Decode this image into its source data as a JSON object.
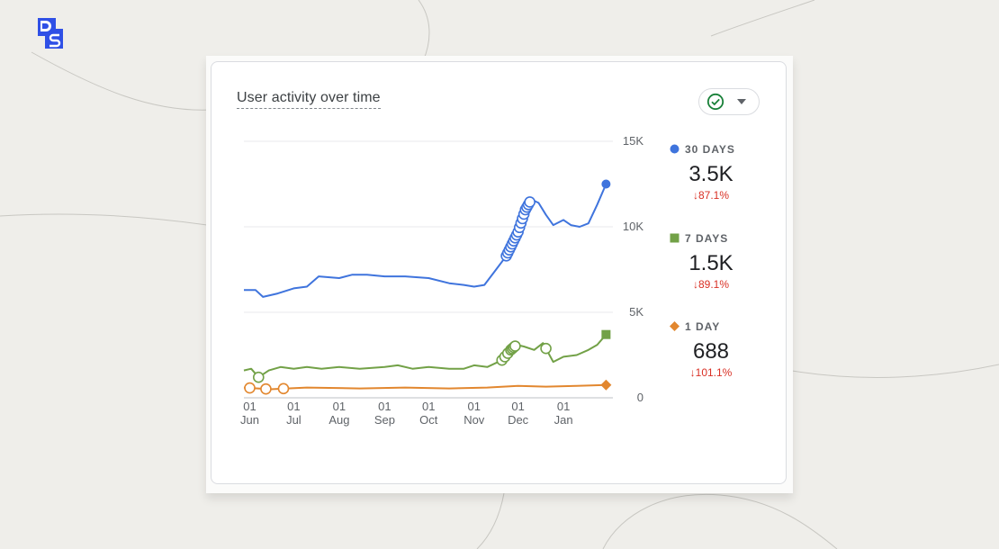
{
  "logo": {
    "icon": "ds-logo",
    "text": "DS",
    "color": "#2f50e6"
  },
  "card": {
    "title": "User activity over time"
  },
  "compare_button": {
    "icon": "check-circle-icon",
    "caret_icon": "arrow-drop-down-icon"
  },
  "legend": [
    {
      "label": "30 DAYS",
      "value": "3.5K",
      "change": "↓87.1%",
      "color": "#3f74dd",
      "marker": "circle"
    },
    {
      "label": "7 DAYS",
      "value": "1.5K",
      "change": "↓89.1%",
      "color": "#72a147",
      "marker": "square"
    },
    {
      "label": "1 DAY",
      "value": "688",
      "change": "↓101.1%",
      "color": "#e2872f",
      "marker": "diamond"
    }
  ],
  "chart_data": {
    "type": "line",
    "ylim": [
      0,
      15000
    ],
    "y_ticks": [
      {
        "label": "0",
        "value": 0
      },
      {
        "label": "5K",
        "value": 5000
      },
      {
        "label": "10K",
        "value": 10000
      },
      {
        "label": "15K",
        "value": 15000
      }
    ],
    "x_range": [
      "2023-05-28",
      "2024-01-31"
    ],
    "x_ticks": [
      {
        "date": "2023-06-01",
        "day": "01",
        "month": "Jun"
      },
      {
        "date": "2023-07-01",
        "day": "01",
        "month": "Jul"
      },
      {
        "date": "2023-08-01",
        "day": "01",
        "month": "Aug"
      },
      {
        "date": "2023-09-01",
        "day": "01",
        "month": "Sep"
      },
      {
        "date": "2023-10-01",
        "day": "01",
        "month": "Oct"
      },
      {
        "date": "2023-11-01",
        "day": "01",
        "month": "Nov"
      },
      {
        "date": "2023-12-01",
        "day": "01",
        "month": "Dec"
      },
      {
        "date": "2024-01-01",
        "day": "01",
        "month": "Jan"
      }
    ],
    "grid": true,
    "legend_position": "right",
    "series": [
      {
        "name": "30 DAYS",
        "color": "#3f74dd",
        "end_marker": "circle",
        "points": [
          [
            "2023-05-28",
            6300
          ],
          [
            "2023-06-05",
            6300
          ],
          [
            "2023-06-10",
            5900
          ],
          [
            "2023-06-20",
            6100
          ],
          [
            "2023-07-01",
            6400
          ],
          [
            "2023-07-10",
            6500
          ],
          [
            "2023-07-18",
            7100
          ],
          [
            "2023-08-01",
            7000
          ],
          [
            "2023-08-10",
            7200
          ],
          [
            "2023-08-20",
            7200
          ],
          [
            "2023-09-01",
            7100
          ],
          [
            "2023-09-15",
            7100
          ],
          [
            "2023-10-01",
            7000
          ],
          [
            "2023-10-15",
            6700
          ],
          [
            "2023-10-25",
            6600
          ],
          [
            "2023-11-01",
            6500
          ],
          [
            "2023-11-08",
            6600
          ],
          [
            "2023-11-16",
            7500
          ],
          [
            "2023-11-23",
            8300
          ],
          [
            "2023-12-01",
            9700
          ],
          [
            "2023-12-06",
            11000
          ],
          [
            "2023-12-10",
            11600
          ],
          [
            "2023-12-15",
            11400
          ],
          [
            "2023-12-20",
            10700
          ],
          [
            "2023-12-25",
            10100
          ],
          [
            "2024-01-01",
            10400
          ],
          [
            "2024-01-06",
            10100
          ],
          [
            "2024-01-12",
            10000
          ],
          [
            "2024-01-18",
            10200
          ],
          [
            "2024-01-24",
            11300
          ],
          [
            "2024-01-30",
            12500
          ]
        ]
      },
      {
        "name": "7 DAYS",
        "color": "#72a147",
        "end_marker": "square",
        "points": [
          [
            "2023-05-28",
            1600
          ],
          [
            "2023-06-02",
            1700
          ],
          [
            "2023-06-07",
            1200
          ],
          [
            "2023-06-14",
            1600
          ],
          [
            "2023-06-22",
            1800
          ],
          [
            "2023-07-01",
            1700
          ],
          [
            "2023-07-10",
            1800
          ],
          [
            "2023-07-20",
            1700
          ],
          [
            "2023-08-01",
            1800
          ],
          [
            "2023-08-15",
            1700
          ],
          [
            "2023-09-01",
            1800
          ],
          [
            "2023-09-10",
            1900
          ],
          [
            "2023-09-20",
            1700
          ],
          [
            "2023-10-01",
            1800
          ],
          [
            "2023-10-15",
            1700
          ],
          [
            "2023-10-25",
            1700
          ],
          [
            "2023-11-01",
            1900
          ],
          [
            "2023-11-10",
            1800
          ],
          [
            "2023-11-20",
            2200
          ],
          [
            "2023-11-26",
            2800
          ],
          [
            "2023-11-30",
            3100
          ],
          [
            "2023-12-05",
            3000
          ],
          [
            "2023-12-12",
            2800
          ],
          [
            "2023-12-18",
            3200
          ],
          [
            "2023-12-25",
            2100
          ],
          [
            "2024-01-01",
            2400
          ],
          [
            "2024-01-10",
            2500
          ],
          [
            "2024-01-18",
            2800
          ],
          [
            "2024-01-24",
            3100
          ],
          [
            "2024-01-30",
            3700
          ]
        ]
      },
      {
        "name": "1 DAY",
        "color": "#e2872f",
        "end_marker": "diamond",
        "points": [
          [
            "2023-05-28",
            600
          ],
          [
            "2023-06-15",
            500
          ],
          [
            "2023-07-10",
            600
          ],
          [
            "2023-08-15",
            550
          ],
          [
            "2023-09-15",
            600
          ],
          [
            "2023-10-15",
            550
          ],
          [
            "2023-11-10",
            600
          ],
          [
            "2023-12-01",
            700
          ],
          [
            "2023-12-20",
            650
          ],
          [
            "2024-01-10",
            700
          ],
          [
            "2024-01-30",
            750
          ]
        ]
      }
    ],
    "annotation_markers": [
      {
        "series": "30 DAYS",
        "dates": [
          "2023-11-23",
          "2023-11-24",
          "2023-11-25",
          "2023-11-26",
          "2023-11-27",
          "2023-11-28",
          "2023-11-29",
          "2023-11-30",
          "2023-12-01",
          "2023-12-02",
          "2023-12-03",
          "2023-12-04",
          "2023-12-05",
          "2023-12-06",
          "2023-12-07",
          "2023-12-08",
          "2023-12-09"
        ]
      },
      {
        "series": "7 DAYS",
        "dates": [
          "2023-06-07",
          "2023-11-20",
          "2023-11-22",
          "2023-11-24",
          "2023-11-26",
          "2023-11-27",
          "2023-11-28",
          "2023-11-29",
          "2023-12-20"
        ]
      },
      {
        "series": "1 DAY",
        "dates": [
          "2023-06-01",
          "2023-06-12",
          "2023-06-24"
        ]
      }
    ]
  }
}
